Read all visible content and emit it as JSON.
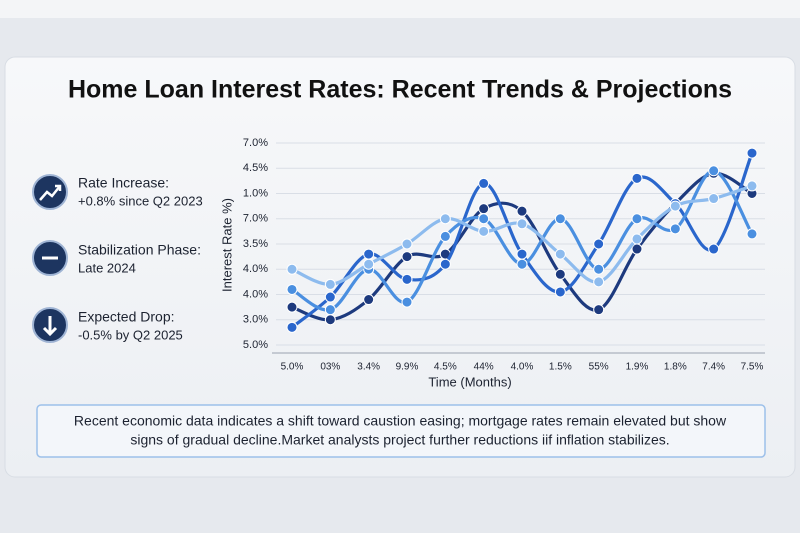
{
  "chart_data": {
    "type": "line",
    "title": "Home Loan Interest Rates: Recent Trends & Projections",
    "y_label": "Interest Rate %)",
    "x_label": "Time (Months)",
    "categories": [
      "5.0%",
      "03%",
      "3.4%",
      "9.9%",
      "4.5%",
      "44%",
      "4.0%",
      "1.5%",
      "55%",
      "1.9%",
      "1.8%",
      "7.4%",
      "7.5%"
    ],
    "ylim": [
      0,
      8
    ],
    "yticks": [
      {
        "value": 8,
        "label": "7.0%"
      },
      {
        "value": 7,
        "label": "4.5%"
      },
      {
        "value": 6,
        "label": "1.0%"
      },
      {
        "value": 5,
        "label": "7.0%"
      },
      {
        "value": 4,
        "label": "3.5%"
      },
      {
        "value": 3,
        "label": "4.0%"
      },
      {
        "value": 2,
        "label": "4.0%"
      },
      {
        "value": 1,
        "label": "3.0%"
      },
      {
        "value": 0,
        "label": "5.0%"
      }
    ],
    "grid": true,
    "series": [
      {
        "color": "#1d3a7e",
        "values": [
          1.5,
          1.0,
          1.8,
          3.5,
          3.6,
          5.4,
          5.3,
          2.8,
          1.4,
          3.8,
          5.6,
          6.8,
          6.0
        ]
      },
      {
        "color": "#2a66cc",
        "values": [
          0.7,
          1.9,
          3.6,
          2.6,
          3.2,
          6.4,
          3.6,
          2.1,
          4.0,
          6.6,
          5.6,
          3.8,
          7.6
        ]
      },
      {
        "color": "#4a8fe0",
        "values": [
          2.2,
          1.4,
          3.0,
          1.7,
          4.3,
          5.0,
          3.2,
          5.0,
          3.0,
          5.0,
          4.6,
          6.9,
          4.4
        ]
      },
      {
        "color": "#8dbbee",
        "values": [
          3.0,
          2.4,
          3.2,
          4.0,
          5.0,
          4.5,
          4.8,
          3.6,
          2.5,
          4.2,
          5.5,
          5.8,
          6.3
        ]
      }
    ]
  },
  "highlights": [
    {
      "label": "Rate Increase:",
      "detail": "+0.8% since Q2 2023"
    },
    {
      "label": "Stabilization Phase:",
      "detail": "Late 2024"
    },
    {
      "label": "Expected Drop:",
      "detail": "-0.5% by Q2 2025"
    }
  ],
  "note": [
    "Recent economic data indicates a shift toward caustion easing; mortgage rates remain elevated but show",
    "signs of gradual decline.Market analysts project  further reductions iif inflation stabilizes."
  ]
}
